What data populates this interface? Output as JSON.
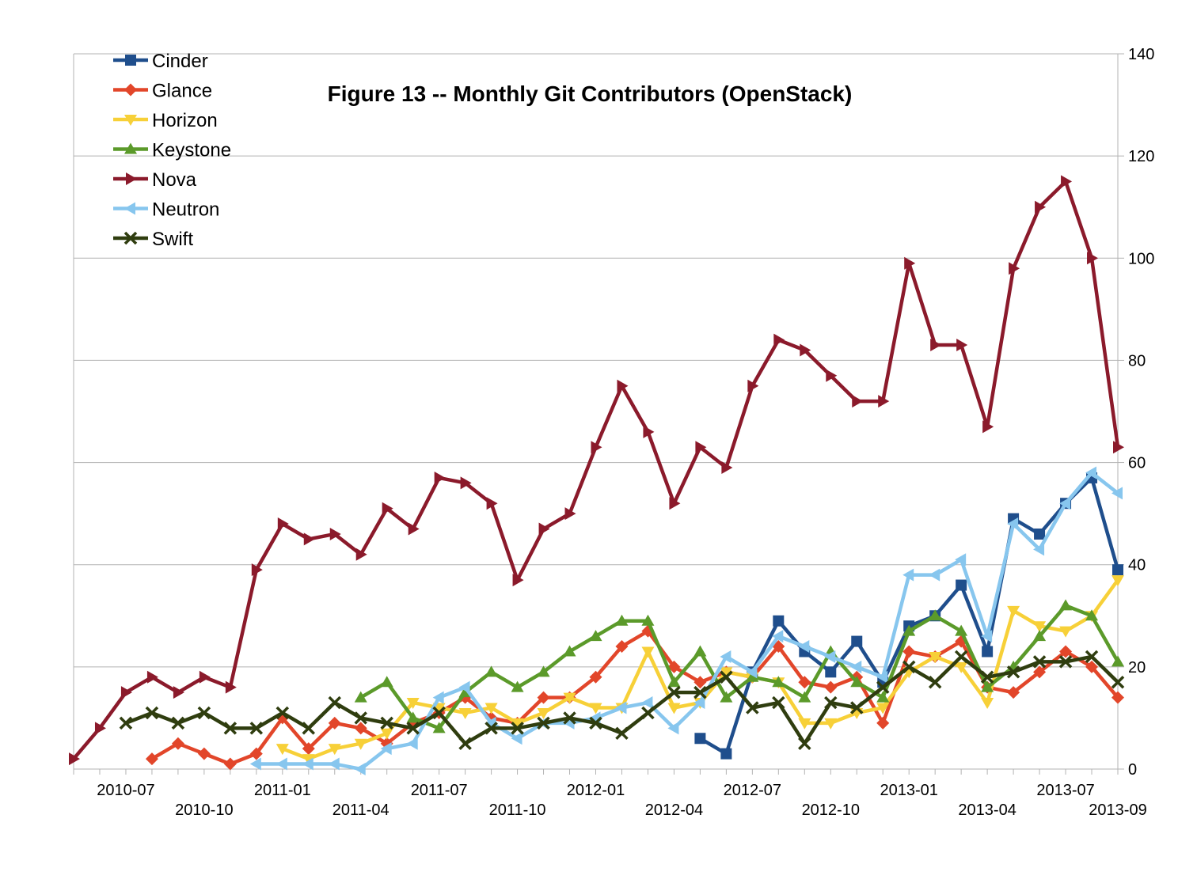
{
  "chart_data": {
    "type": "line",
    "title": "Figure 13 -- Monthly Git Contributors (OpenStack)",
    "xlabel": "",
    "ylabel": "",
    "ylim": [
      0,
      140
    ],
    "yticks": [
      0,
      20,
      40,
      60,
      80,
      100,
      120,
      140
    ],
    "grid": true,
    "legend_position": "top-left",
    "x": [
      "2010-05",
      "2010-06",
      "2010-07",
      "2010-08",
      "2010-09",
      "2010-10",
      "2010-11",
      "2010-12",
      "2011-01",
      "2011-02",
      "2011-03",
      "2011-04",
      "2011-05",
      "2011-06",
      "2011-07",
      "2011-08",
      "2011-09",
      "2011-10",
      "2011-11",
      "2011-12",
      "2012-01",
      "2012-02",
      "2012-03",
      "2012-04",
      "2012-05",
      "2012-06",
      "2012-07",
      "2012-08",
      "2012-09",
      "2012-10",
      "2012-11",
      "2012-12",
      "2013-01",
      "2013-02",
      "2013-03",
      "2013-04",
      "2013-05",
      "2013-06",
      "2013-07",
      "2013-08",
      "2013-09"
    ],
    "tick_labels": [
      {
        "label": "2010-07",
        "index": 2,
        "row": 0
      },
      {
        "label": "2010-10",
        "index": 5,
        "row": 1
      },
      {
        "label": "2011-01",
        "index": 8,
        "row": 0
      },
      {
        "label": "2011-04",
        "index": 11,
        "row": 1
      },
      {
        "label": "2011-07",
        "index": 14,
        "row": 0
      },
      {
        "label": "2011-10",
        "index": 17,
        "row": 1
      },
      {
        "label": "2012-01",
        "index": 20,
        "row": 0
      },
      {
        "label": "2012-04",
        "index": 23,
        "row": 1
      },
      {
        "label": "2012-07",
        "index": 26,
        "row": 0
      },
      {
        "label": "2012-10",
        "index": 29,
        "row": 1
      },
      {
        "label": "2013-01",
        "index": 32,
        "row": 0
      },
      {
        "label": "2013-04",
        "index": 35,
        "row": 1
      },
      {
        "label": "2013-07",
        "index": 38,
        "row": 0
      },
      {
        "label": "2013-09",
        "index": 40,
        "row": 1
      }
    ],
    "series": [
      {
        "name": "Cinder",
        "color": "#1f4e8c",
        "marker": "square",
        "values": [
          null,
          null,
          null,
          null,
          null,
          null,
          null,
          null,
          null,
          null,
          null,
          null,
          null,
          null,
          null,
          null,
          null,
          null,
          null,
          null,
          null,
          null,
          null,
          null,
          6,
          3,
          19,
          29,
          23,
          19,
          25,
          17,
          28,
          30,
          36,
          23,
          49,
          46,
          52,
          57,
          39
        ]
      },
      {
        "name": "Glance",
        "color": "#e2462a",
        "marker": "diamond",
        "values": [
          null,
          null,
          null,
          2,
          5,
          3,
          1,
          3,
          10,
          4,
          9,
          8,
          5,
          9,
          11,
          14,
          10,
          9,
          14,
          14,
          18,
          24,
          27,
          20,
          17,
          19,
          18,
          24,
          17,
          16,
          18,
          9,
          23,
          22,
          25,
          16,
          15,
          19,
          23,
          20,
          14
        ]
      },
      {
        "name": "Horizon",
        "color": "#f7d038",
        "marker": "triangle-down",
        "values": [
          null,
          null,
          null,
          null,
          null,
          null,
          null,
          null,
          4,
          2,
          4,
          5,
          7,
          13,
          12,
          11,
          12,
          9,
          11,
          14,
          12,
          12,
          23,
          12,
          13,
          19,
          18,
          17,
          9,
          9,
          11,
          12,
          19,
          22,
          20,
          13,
          31,
          28,
          27,
          30,
          37
        ]
      },
      {
        "name": "Keystone",
        "color": "#5b9a2a",
        "marker": "triangle-up",
        "values": [
          null,
          null,
          null,
          null,
          null,
          null,
          null,
          null,
          null,
          null,
          null,
          14,
          17,
          10,
          8,
          15,
          19,
          16,
          19,
          23,
          26,
          29,
          29,
          17,
          23,
          14,
          18,
          17,
          14,
          23,
          17,
          14,
          27,
          30,
          27,
          16,
          20,
          26,
          32,
          30,
          21
        ]
      },
      {
        "name": "Nova",
        "color": "#8b1a2b",
        "marker": "triangle-right",
        "values": [
          2,
          8,
          15,
          18,
          15,
          18,
          16,
          39,
          48,
          45,
          46,
          42,
          51,
          47,
          57,
          56,
          52,
          37,
          47,
          50,
          63,
          75,
          66,
          52,
          63,
          59,
          75,
          84,
          82,
          77,
          72,
          72,
          99,
          83,
          83,
          67,
          98,
          110,
          115,
          100,
          63
        ]
      },
      {
        "name": "Neutron",
        "color": "#87c6ee",
        "marker": "triangle-left",
        "values": [
          null,
          null,
          null,
          null,
          null,
          null,
          null,
          1,
          1,
          1,
          1,
          0,
          4,
          5,
          14,
          16,
          9,
          6,
          9,
          9,
          10,
          12,
          13,
          8,
          13,
          22,
          19,
          26,
          24,
          22,
          20,
          18,
          38,
          38,
          41,
          26,
          48,
          43,
          52,
          58,
          54
        ]
      },
      {
        "name": "Swift",
        "color": "#2f3d0f",
        "marker": "x",
        "values": [
          null,
          null,
          9,
          11,
          9,
          11,
          8,
          8,
          11,
          8,
          13,
          10,
          9,
          8,
          11,
          5,
          8,
          8,
          9,
          10,
          9,
          7,
          11,
          15,
          15,
          18,
          12,
          13,
          5,
          13,
          12,
          16,
          20,
          17,
          22,
          18,
          19,
          21,
          21,
          22,
          17
        ]
      }
    ]
  }
}
